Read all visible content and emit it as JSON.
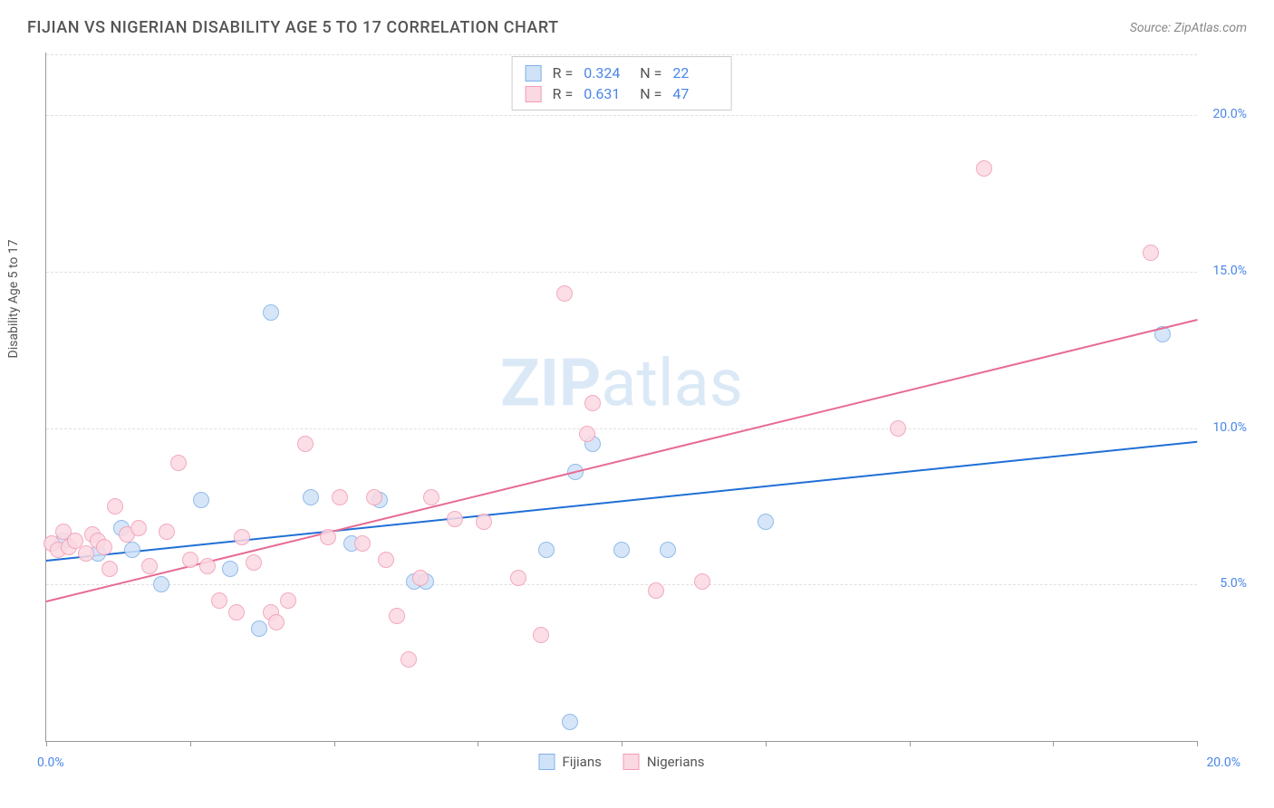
{
  "title": "FIJIAN VS NIGERIAN DISABILITY AGE 5 TO 17 CORRELATION CHART",
  "source": "Source: ZipAtlas.com",
  "watermark_bold": "ZIP",
  "watermark_light": "atlas",
  "chart": {
    "type": "scatter",
    "y_axis_label": "Disability Age 5 to 17",
    "xlim": [
      0,
      20
    ],
    "ylim": [
      0,
      22
    ],
    "x_ticks": [
      0,
      2.5,
      5,
      7.5,
      10,
      12.5,
      15,
      17.5,
      20
    ],
    "y_gridlines": [
      5,
      10,
      15,
      20
    ],
    "y_labels": [
      "5.0%",
      "10.0%",
      "15.0%",
      "20.0%"
    ],
    "x_label_min": "0.0%",
    "x_label_max": "20.0%",
    "background_color": "#ffffff",
    "grid_color": "#e0e0e0",
    "axis_color": "#999999",
    "point_radius": 9,
    "series": [
      {
        "name": "Fijians",
        "fill_color": "#cfe2f7",
        "stroke_color": "#7fb0e8",
        "line_color": "#1f6fd6",
        "r_value": "0.324",
        "n_value": "22",
        "trend": {
          "x1": 0,
          "y1": 5.8,
          "x2": 20,
          "y2": 9.6
        },
        "points": [
          [
            0.3,
            6.4
          ],
          [
            0.9,
            6.0
          ],
          [
            1.3,
            6.8
          ],
          [
            1.5,
            6.1
          ],
          [
            2.0,
            5.0
          ],
          [
            2.7,
            7.7
          ],
          [
            3.2,
            5.5
          ],
          [
            3.7,
            3.6
          ],
          [
            3.9,
            13.7
          ],
          [
            4.6,
            7.8
          ],
          [
            5.3,
            6.3
          ],
          [
            5.8,
            7.7
          ],
          [
            6.4,
            5.1
          ],
          [
            6.6,
            5.1
          ],
          [
            8.7,
            6.1
          ],
          [
            9.2,
            8.6
          ],
          [
            9.5,
            9.5
          ],
          [
            10.0,
            6.1
          ],
          [
            10.8,
            6.1
          ],
          [
            12.5,
            7.0
          ],
          [
            19.4,
            13.0
          ],
          [
            9.1,
            0.6
          ]
        ]
      },
      {
        "name": "Nigerians",
        "fill_color": "#fbd9e2",
        "stroke_color": "#f29cb4",
        "line_color": "#e76b92",
        "r_value": "0.631",
        "n_value": "47",
        "trend": {
          "x1": 0,
          "y1": 4.5,
          "x2": 20,
          "y2": 13.5
        },
        "points": [
          [
            0.1,
            6.3
          ],
          [
            0.2,
            6.1
          ],
          [
            0.3,
            6.7
          ],
          [
            0.4,
            6.2
          ],
          [
            0.5,
            6.4
          ],
          [
            0.7,
            6.0
          ],
          [
            0.8,
            6.6
          ],
          [
            0.9,
            6.4
          ],
          [
            1.0,
            6.2
          ],
          [
            1.2,
            7.5
          ],
          [
            1.4,
            6.6
          ],
          [
            1.6,
            6.8
          ],
          [
            1.8,
            5.6
          ],
          [
            2.1,
            6.7
          ],
          [
            2.3,
            8.9
          ],
          [
            2.5,
            5.8
          ],
          [
            2.8,
            5.6
          ],
          [
            3.0,
            4.5
          ],
          [
            3.3,
            4.1
          ],
          [
            3.4,
            6.5
          ],
          [
            3.6,
            5.7
          ],
          [
            3.9,
            4.1
          ],
          [
            4.0,
            3.8
          ],
          [
            4.2,
            4.5
          ],
          [
            4.5,
            9.5
          ],
          [
            4.9,
            6.5
          ],
          [
            5.1,
            7.8
          ],
          [
            5.5,
            6.3
          ],
          [
            5.7,
            7.8
          ],
          [
            5.9,
            5.8
          ],
          [
            6.1,
            4.0
          ],
          [
            6.3,
            2.6
          ],
          [
            6.5,
            5.2
          ],
          [
            6.7,
            7.8
          ],
          [
            7.1,
            7.1
          ],
          [
            7.6,
            7.0
          ],
          [
            8.2,
            5.2
          ],
          [
            8.6,
            3.4
          ],
          [
            9.0,
            14.3
          ],
          [
            9.4,
            9.8
          ],
          [
            9.5,
            10.8
          ],
          [
            10.6,
            4.8
          ],
          [
            11.4,
            5.1
          ],
          [
            14.8,
            10.0
          ],
          [
            16.3,
            18.3
          ],
          [
            19.2,
            15.6
          ],
          [
            1.1,
            5.5
          ]
        ]
      }
    ]
  },
  "legend": {
    "label_fijians": "Fijians",
    "label_nigerians": "Nigerians"
  },
  "stats_labels": {
    "r": "R =",
    "n": "N ="
  }
}
